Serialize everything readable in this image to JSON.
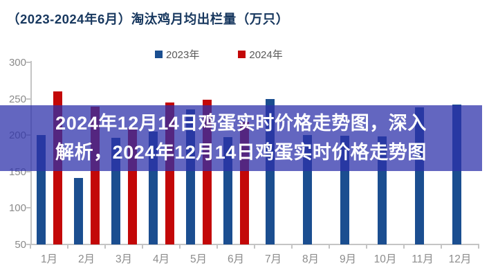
{
  "title": "（2023-2024年6月）淘汰鸡月均出栏量（万只）",
  "colors": {
    "title_text": "#17375E",
    "series_2023": "#1B4E90",
    "series_2024": "#C30808",
    "overlay_background": "rgba(45,48,170,0.74)",
    "overlay_text": "#FFFFFF",
    "axis_text": "#8A8A8A"
  },
  "overlay": {
    "line1": "2024年12月14日鸡蛋实时价格走势图，深入",
    "line2": "解析，2024年12月14日鸡蛋实时价格走势图"
  },
  "chart_data": {
    "type": "bar",
    "title": "（2023-2024年6月）淘汰鸡月均出栏量（万只）",
    "categories": [
      "1月",
      "2月",
      "3月",
      "4月",
      "5月",
      "6月",
      "7月",
      "8月",
      "9月",
      "10月",
      "11月",
      "12月"
    ],
    "series": [
      {
        "name": "2023年",
        "color": "#1B4E90",
        "values": [
          200,
          141,
          196,
          205,
          235,
          197,
          250,
          200,
          199,
          198,
          238,
          242
        ]
      },
      {
        "name": "2024年",
        "color": "#C30808",
        "values": [
          260,
          239,
          210,
          245,
          249,
          218,
          null,
          null,
          null,
          null,
          null,
          null
        ]
      }
    ],
    "ylabel": "",
    "xlabel": "",
    "ylim": [
      50,
      300
    ],
    "y_ticks": [
      300,
      250,
      200,
      150,
      100,
      50
    ],
    "grid": false,
    "legend_position": "top-center"
  }
}
